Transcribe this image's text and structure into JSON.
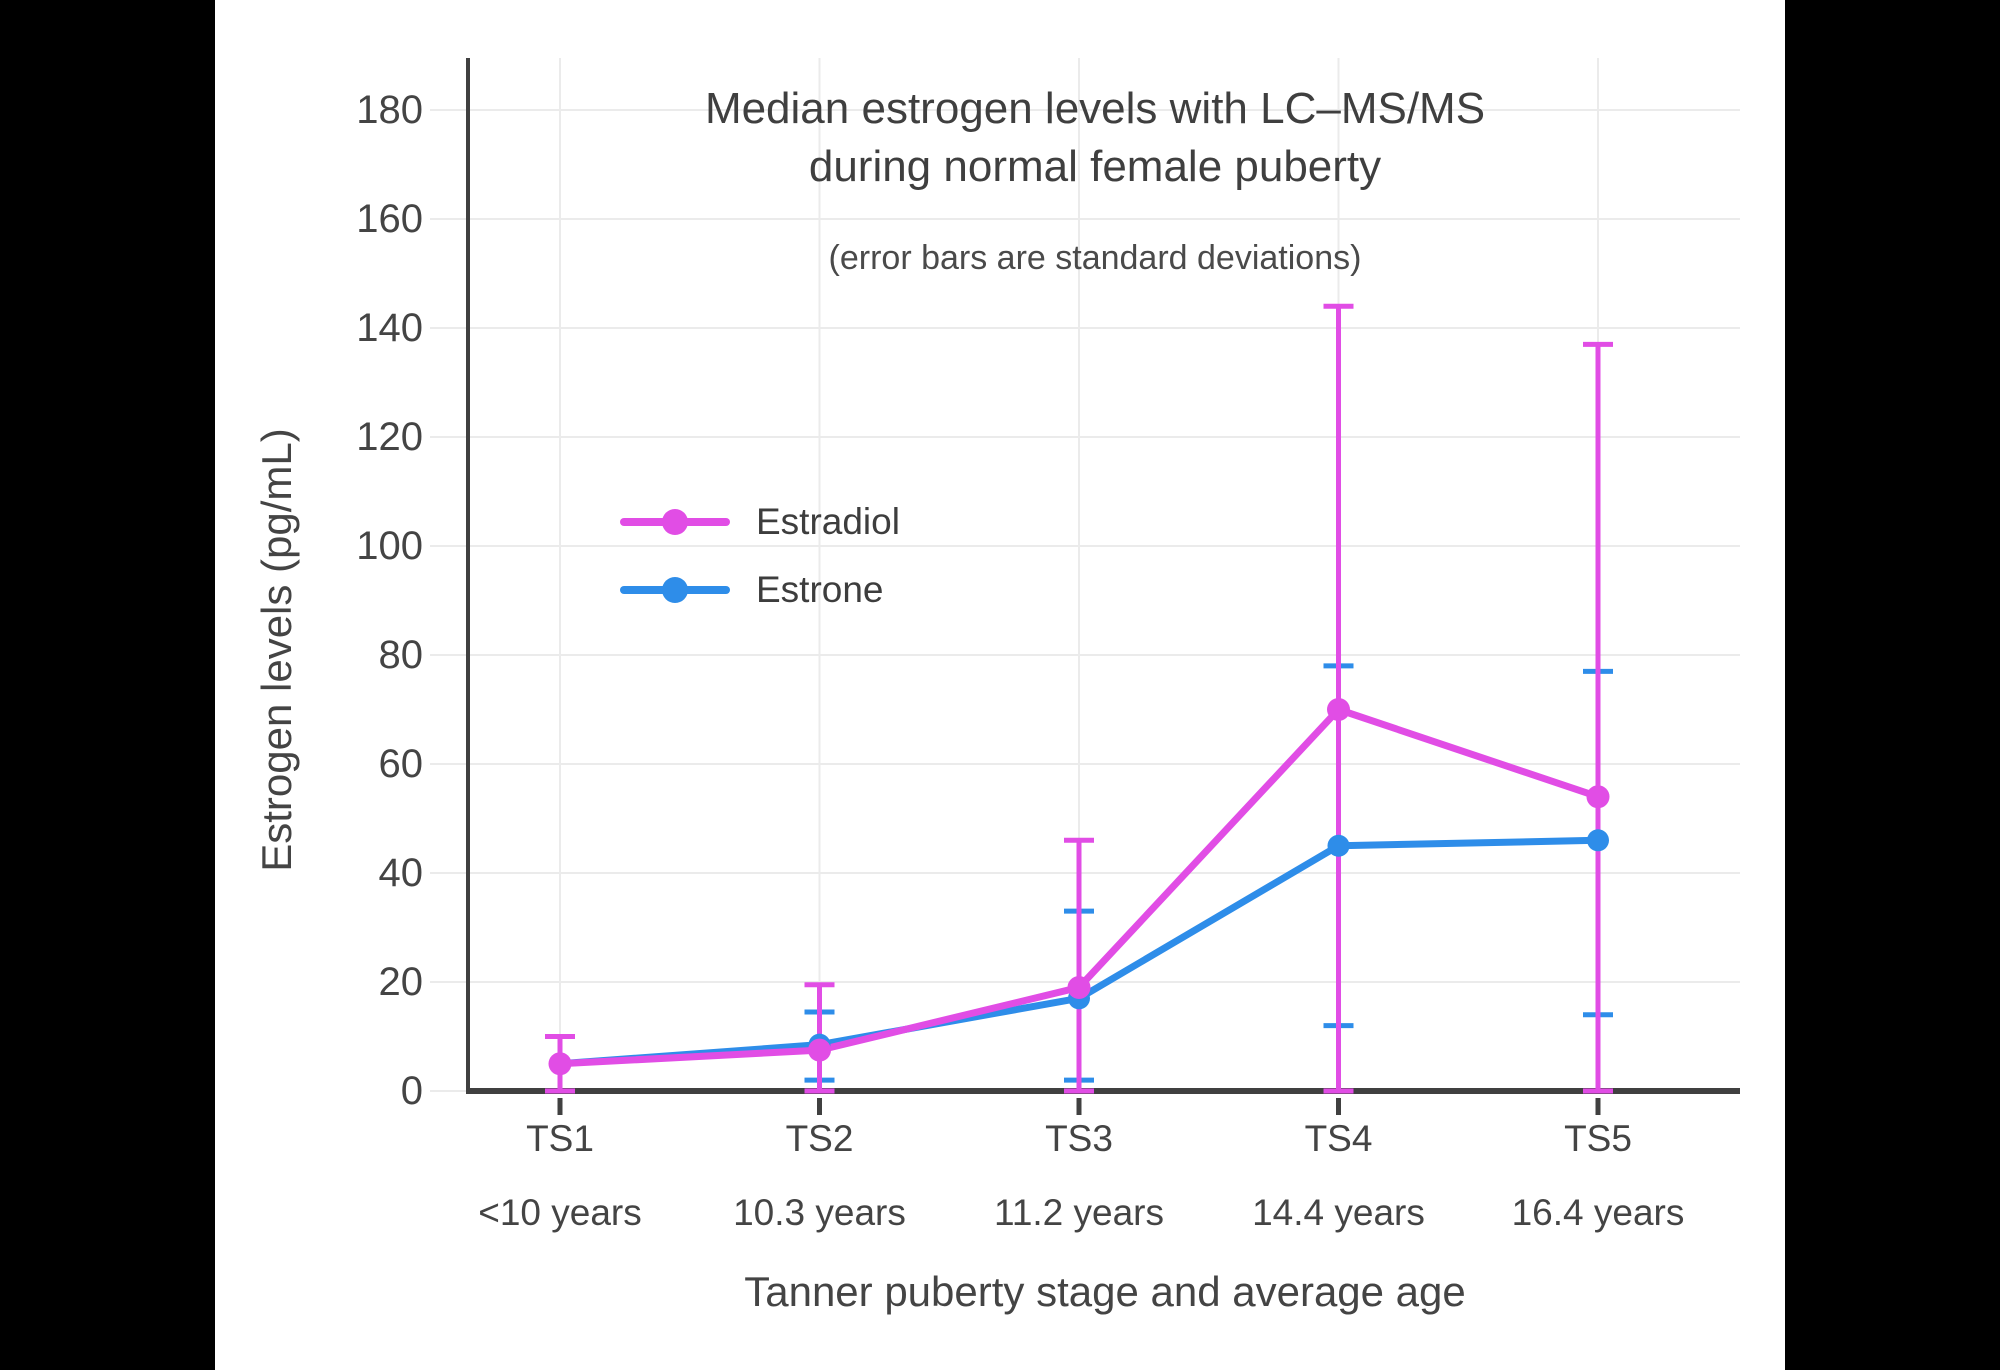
{
  "page": {
    "background": "#000000",
    "canvas_background": "#ffffff"
  },
  "chart_data": {
    "type": "line",
    "title": "Median estrogen levels with LC–MS/MS during normal female puberty",
    "title_line1": "Median estrogen levels with LC–MS/MS",
    "title_line2": "during normal female puberty",
    "subtitle": "(error bars are standard deviations)",
    "xlabel": "Tanner puberty stage and average age",
    "ylabel": "Estrogen levels (pg/mL)",
    "categories": [
      "TS1",
      "TS2",
      "TS3",
      "TS4",
      "TS5"
    ],
    "category_sublabels": [
      "<10 years",
      "10.3 years",
      "11.2 years",
      "14.4 years",
      "16.4 years"
    ],
    "yticks": [
      0,
      20,
      40,
      60,
      80,
      100,
      120,
      140,
      160,
      180
    ],
    "ylim": [
      0,
      190
    ],
    "grid": true,
    "legend_position": "inside-upper-left",
    "series": [
      {
        "name": "Estradiol",
        "color": "#E14DE5",
        "values": [
          5,
          7.5,
          19,
          70,
          54
        ],
        "error_high": [
          10,
          19.5,
          46,
          144,
          137
        ],
        "error_low": [
          0,
          0,
          0,
          0,
          0
        ]
      },
      {
        "name": "Estrone",
        "color": "#2E8DE9",
        "values": [
          5,
          8.5,
          17,
          45,
          46
        ],
        "error_high": [
          null,
          14.5,
          33,
          78,
          77
        ],
        "error_low": [
          null,
          2,
          2,
          12,
          14
        ]
      }
    ],
    "colors": {
      "grid": "#EBEBEB",
      "axis": "#404040",
      "text": "#444444"
    }
  }
}
